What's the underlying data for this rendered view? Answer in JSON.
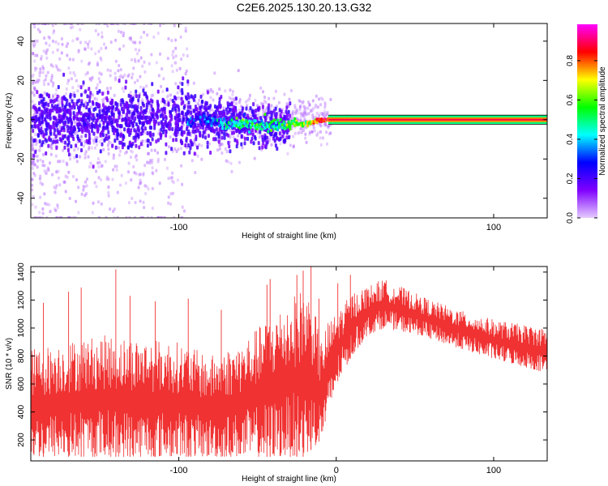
{
  "title": "C2E6.2025.130.20.13.G32",
  "chart_data": [
    {
      "type": "heatmap",
      "xlabel": "Height of straight line (km)",
      "ylabel": "Frequency (Hz)",
      "xlim": [
        -194,
        134
      ],
      "ylim": [
        -50,
        49
      ],
      "xticks": [
        -100,
        0,
        100
      ],
      "xtick_labels": [
        "-100",
        "",
        "100"
      ],
      "yticks": [
        -40,
        -20,
        0,
        20,
        40
      ],
      "ytick_labels": [
        "-40",
        "-20",
        "0",
        "20",
        "40"
      ],
      "colorbar": {
        "label": "Normalized spectral amplitude",
        "range": [
          0,
          1
        ],
        "ticks": [
          0.0,
          0.2,
          0.4,
          0.6,
          0.8
        ],
        "tick_labels": [
          "0.0",
          "0.2",
          "0.4",
          "0.6",
          "0.8"
        ],
        "colormap": [
          "#e5ccff",
          "#8000ff",
          "#0000ff",
          "#00ffff",
          "#00ff00",
          "#ffff00",
          "#ff0000",
          "#ff00ff"
        ]
      },
      "ridge": {
        "frequency_hz": [
          [
            -194,
            0
          ],
          [
            -150,
            0
          ],
          [
            -100,
            0
          ],
          [
            -80,
            0
          ],
          [
            -60,
            -2
          ],
          [
            -50,
            -3
          ],
          [
            -40,
            -3
          ],
          [
            -30,
            -2
          ],
          [
            -20,
            -2
          ],
          [
            -10,
            0
          ],
          [
            0,
            0
          ],
          [
            50,
            0
          ],
          [
            100,
            0
          ],
          [
            134,
            0
          ]
        ],
        "amplitude": [
          [
            -194,
            0.2
          ],
          [
            -100,
            0.2
          ],
          [
            -80,
            0.3
          ],
          [
            -60,
            0.5
          ],
          [
            -40,
            0.5
          ],
          [
            -20,
            0.6
          ],
          [
            -10,
            0.85
          ],
          [
            0,
            0.9
          ],
          [
            134,
            0.9
          ]
        ]
      },
      "grid": false
    },
    {
      "type": "line",
      "xlabel": "Height of straight line (km)",
      "ylabel": "SNR (10 * v/v)",
      "xlim": [
        -194,
        134
      ],
      "ylim": [
        50,
        1440
      ],
      "xticks": [
        -100,
        0,
        100
      ],
      "xtick_labels": [
        "-100",
        "0",
        "100"
      ],
      "yticks": [
        200,
        400,
        600,
        800,
        1000,
        1200,
        1400
      ],
      "ytick_labels": [
        "200",
        "400",
        "600",
        "800",
        "1000",
        "1200",
        "1400"
      ],
      "series": [
        {
          "color": "#f03232",
          "envelope_low": [
            [
              -194,
              80
            ],
            [
              -150,
              80
            ],
            [
              -100,
              80
            ],
            [
              -50,
              80
            ],
            [
              -20,
              80
            ],
            [
              -10,
              200
            ],
            [
              -5,
              350
            ],
            [
              0,
              600
            ],
            [
              10,
              800
            ],
            [
              20,
              950
            ],
            [
              30,
              1000
            ],
            [
              50,
              960
            ],
            [
              80,
              850
            ],
            [
              100,
              780
            ],
            [
              134,
              680
            ]
          ],
          "envelope_high": [
            [
              -194,
              850
            ],
            [
              -150,
              950
            ],
            [
              -100,
              900
            ],
            [
              -80,
              800
            ],
            [
              -60,
              900
            ],
            [
              -40,
              1100
            ],
            [
              -20,
              1300
            ],
            [
              -15,
              1200
            ],
            [
              -10,
              900
            ],
            [
              -5,
              1050
            ],
            [
              0,
              1100
            ],
            [
              10,
              1250
            ],
            [
              20,
              1300
            ],
            [
              30,
              1350
            ],
            [
              40,
              1300
            ],
            [
              60,
              1200
            ],
            [
              80,
              1120
            ],
            [
              100,
              1060
            ],
            [
              120,
              1020
            ],
            [
              134,
              1000
            ]
          ],
          "spikes": [
            [
              -186,
              1180
            ],
            [
              -170,
              1260
            ],
            [
              -162,
              1290
            ],
            [
              -140,
              1420
            ],
            [
              -131,
              1230
            ],
            [
              -115,
              1190
            ],
            [
              -94,
              1210
            ],
            [
              -73,
              1130
            ],
            [
              -44,
              1310
            ],
            [
              -42,
              1350
            ],
            [
              -25,
              1380
            ],
            [
              -21,
              1410
            ],
            [
              -16,
              1440
            ],
            [
              -11,
              1210
            ],
            [
              1,
              1320
            ],
            [
              9,
              1380
            ]
          ]
        }
      ],
      "grid": false
    }
  ]
}
